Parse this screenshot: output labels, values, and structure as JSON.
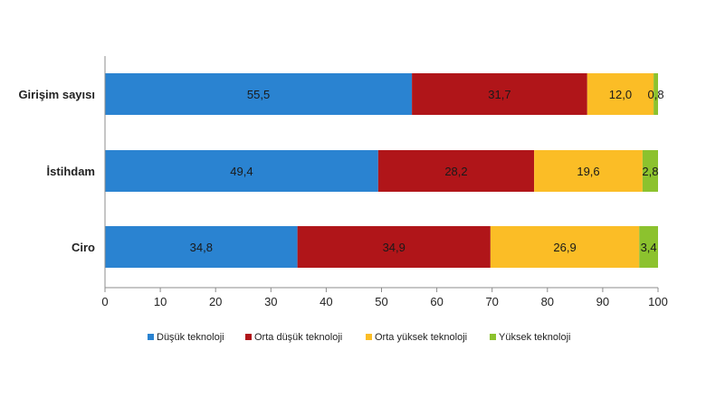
{
  "chart_data": {
    "type": "bar",
    "orientation": "horizontal",
    "stacked": true,
    "categories": [
      "Girişim sayısı",
      "İstihdam",
      "Ciro"
    ],
    "series": [
      {
        "name": "Düşük teknoloji",
        "values": [
          55.5,
          49.4,
          34.8
        ],
        "labels": [
          "55,5",
          "49,4",
          "34,8"
        ],
        "color": "#2a83d1"
      },
      {
        "name": "Orta düşük teknoloji",
        "values": [
          31.7,
          28.2,
          34.9
        ],
        "labels": [
          "31,7",
          "28,2",
          "34,9"
        ],
        "color": "#b01519"
      },
      {
        "name": "Orta yüksek teknoloji",
        "values": [
          12.0,
          19.6,
          26.9
        ],
        "labels": [
          "12,0",
          "19,6",
          "26,9"
        ],
        "color": "#fbbd26"
      },
      {
        "name": "Yüksek teknoloji",
        "values": [
          0.8,
          2.8,
          3.4
        ],
        "labels": [
          "0,8",
          "2,8",
          "3,4"
        ],
        "color": "#8cc22e"
      }
    ],
    "xlim": [
      0,
      100
    ],
    "xticks": [
      "0",
      "10",
      "20",
      "30",
      "40",
      "50",
      "60",
      "70",
      "80",
      "90",
      "100"
    ],
    "grid": false,
    "legend_position": "bottom"
  }
}
